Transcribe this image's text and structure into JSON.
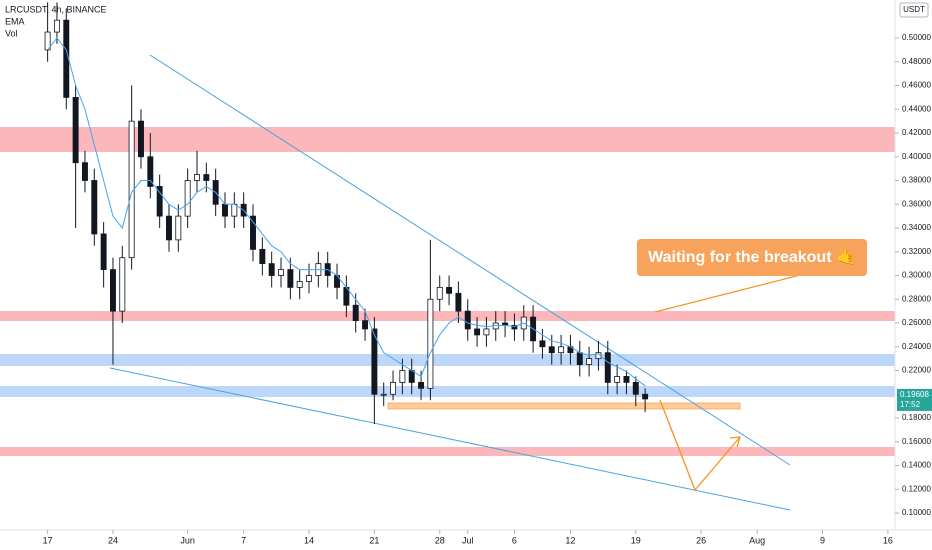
{
  "chart_data": {
    "type": "candlestick",
    "title": "LRCUSDT, 4h, BINANCE",
    "indicators": [
      "EMA",
      "Vol"
    ],
    "currency": "USDT",
    "annotation": "Waiting for the breakout 🤙",
    "last_price": 0.19608,
    "countdown": "17:52",
    "x": [
      0,
      1,
      2,
      3,
      4,
      5,
      6,
      7,
      8,
      9,
      10,
      11,
      12,
      13,
      14,
      15,
      16,
      17,
      18,
      19,
      20,
      21,
      22,
      23,
      24,
      25,
      26,
      27,
      28,
      29,
      30,
      31,
      32,
      33,
      34,
      35,
      36,
      37,
      38,
      39,
      40,
      41,
      42,
      43,
      44,
      45,
      46,
      47,
      48,
      49,
      50,
      51,
      52,
      53,
      54,
      55,
      56,
      57,
      58,
      59,
      60,
      61,
      62,
      63,
      64
    ],
    "open": [
      0.49,
      0.505,
      0.515,
      0.45,
      0.395,
      0.38,
      0.335,
      0.305,
      0.27,
      0.315,
      0.43,
      0.4,
      0.375,
      0.35,
      0.33,
      0.35,
      0.38,
      0.385,
      0.38,
      0.36,
      0.35,
      0.36,
      0.35,
      0.322,
      0.31,
      0.3,
      0.305,
      0.29,
      0.295,
      0.3,
      0.31,
      0.3,
      0.29,
      0.275,
      0.262,
      0.255,
      0.2,
      0.2,
      0.21,
      0.22,
      0.21,
      0.205,
      0.28,
      0.29,
      0.285,
      0.27,
      0.255,
      0.25,
      0.255,
      0.26,
      0.258,
      0.255,
      0.265,
      0.245,
      0.24,
      0.235,
      0.24,
      0.235,
      0.225,
      0.23,
      0.235,
      0.21,
      0.215,
      0.21,
      0.2
    ],
    "high": [
      0.53,
      0.53,
      0.525,
      0.46,
      0.405,
      0.39,
      0.345,
      0.315,
      0.325,
      0.46,
      0.44,
      0.42,
      0.385,
      0.36,
      0.36,
      0.39,
      0.405,
      0.395,
      0.39,
      0.37,
      0.37,
      0.37,
      0.36,
      0.332,
      0.32,
      0.315,
      0.315,
      0.305,
      0.31,
      0.32,
      0.32,
      0.31,
      0.3,
      0.285,
      0.272,
      0.265,
      0.21,
      0.22,
      0.23,
      0.23,
      0.22,
      0.33,
      0.3,
      0.3,
      0.295,
      0.28,
      0.265,
      0.265,
      0.27,
      0.27,
      0.268,
      0.275,
      0.275,
      0.255,
      0.25,
      0.25,
      0.25,
      0.245,
      0.24,
      0.245,
      0.245,
      0.225,
      0.22,
      0.215,
      0.205
    ],
    "low": [
      0.48,
      0.495,
      0.44,
      0.34,
      0.37,
      0.325,
      0.29,
      0.225,
      0.26,
      0.305,
      0.39,
      0.365,
      0.34,
      0.32,
      0.32,
      0.34,
      0.37,
      0.37,
      0.35,
      0.34,
      0.34,
      0.34,
      0.312,
      0.3,
      0.29,
      0.29,
      0.28,
      0.28,
      0.285,
      0.29,
      0.29,
      0.28,
      0.265,
      0.252,
      0.245,
      0.175,
      0.19,
      0.195,
      0.2,
      0.2,
      0.195,
      0.195,
      0.27,
      0.275,
      0.26,
      0.245,
      0.24,
      0.24,
      0.245,
      0.248,
      0.245,
      0.245,
      0.235,
      0.23,
      0.225,
      0.225,
      0.225,
      0.215,
      0.215,
      0.22,
      0.2,
      0.2,
      0.2,
      0.19,
      0.185
    ],
    "close": [
      0.505,
      0.515,
      0.45,
      0.395,
      0.38,
      0.335,
      0.305,
      0.27,
      0.315,
      0.43,
      0.4,
      0.375,
      0.35,
      0.33,
      0.35,
      0.38,
      0.385,
      0.38,
      0.36,
      0.35,
      0.36,
      0.35,
      0.322,
      0.31,
      0.3,
      0.305,
      0.29,
      0.295,
      0.3,
      0.31,
      0.3,
      0.29,
      0.275,
      0.262,
      0.255,
      0.2,
      0.2,
      0.21,
      0.22,
      0.21,
      0.205,
      0.28,
      0.29,
      0.285,
      0.27,
      0.255,
      0.25,
      0.255,
      0.26,
      0.258,
      0.255,
      0.265,
      0.245,
      0.24,
      0.235,
      0.24,
      0.235,
      0.225,
      0.23,
      0.235,
      0.21,
      0.215,
      0.21,
      0.2,
      0.19608
    ],
    "ema": {
      "color": "#42a5f5",
      "values": [
        0.49,
        0.5,
        0.49,
        0.46,
        0.44,
        0.41,
        0.38,
        0.35,
        0.34,
        0.37,
        0.38,
        0.38,
        0.37,
        0.36,
        0.355,
        0.36,
        0.37,
        0.375,
        0.37,
        0.36,
        0.36,
        0.355,
        0.345,
        0.335,
        0.325,
        0.32,
        0.31,
        0.305,
        0.305,
        0.305,
        0.305,
        0.3,
        0.29,
        0.28,
        0.27,
        0.25,
        0.235,
        0.23,
        0.225,
        0.22,
        0.215,
        0.235,
        0.25,
        0.26,
        0.265,
        0.26,
        0.258,
        0.257,
        0.258,
        0.258,
        0.257,
        0.26,
        0.255,
        0.25,
        0.245,
        0.243,
        0.24,
        0.235,
        0.233,
        0.234,
        0.227,
        0.223,
        0.219,
        0.213,
        0.207
      ]
    },
    "xlim": [
      -5.1,
      91.3
    ],
    "xticks": [
      {
        "value": 0,
        "label": "17"
      },
      {
        "value": 7,
        "label": "24"
      },
      {
        "value": 15,
        "label": "Jun"
      },
      {
        "value": 21,
        "label": "7"
      },
      {
        "value": 28,
        "label": "14"
      },
      {
        "value": 35,
        "label": "21"
      },
      {
        "value": 42,
        "label": "28"
      },
      {
        "value": 45,
        "label": "Jul"
      },
      {
        "value": 50,
        "label": "6"
      },
      {
        "value": 56,
        "label": "12"
      },
      {
        "value": 63,
        "label": "19"
      },
      {
        "value": 70,
        "label": "26"
      },
      {
        "value": 76,
        "label": "Aug"
      },
      {
        "value": 83,
        "label": "9"
      },
      {
        "value": 90,
        "label": "16"
      }
    ],
    "ylim": [
      0.0857,
      0.532
    ],
    "yticks": [
      {
        "value": 0.1,
        "label": "0.10000"
      },
      {
        "value": 0.12,
        "label": "0.12000"
      },
      {
        "value": 0.14,
        "label": "0.14000"
      },
      {
        "value": 0.16,
        "label": "0.16000"
      },
      {
        "value": 0.18,
        "label": "0.18000"
      },
      {
        "value": 0.22,
        "label": "0.22000"
      },
      {
        "value": 0.24,
        "label": "0.24000"
      },
      {
        "value": 0.26,
        "label": "0.26000"
      },
      {
        "value": 0.28,
        "label": "0.28000"
      },
      {
        "value": 0.3,
        "label": "0.30000"
      },
      {
        "value": 0.32,
        "label": "0.32000"
      },
      {
        "value": 0.34,
        "label": "0.34000"
      },
      {
        "value": 0.36,
        "label": "0.36000"
      },
      {
        "value": 0.38,
        "label": "0.38000"
      },
      {
        "value": 0.4,
        "label": "0.40000"
      },
      {
        "value": 0.42,
        "label": "0.42000"
      },
      {
        "value": 0.44,
        "label": "0.44000"
      },
      {
        "value": 0.46,
        "label": "0.46000"
      },
      {
        "value": 0.48,
        "label": "0.48000"
      },
      {
        "value": 0.5,
        "label": "0.50000"
      }
    ],
    "up_color": "#ffffff",
    "down_color": "#131722"
  }
}
